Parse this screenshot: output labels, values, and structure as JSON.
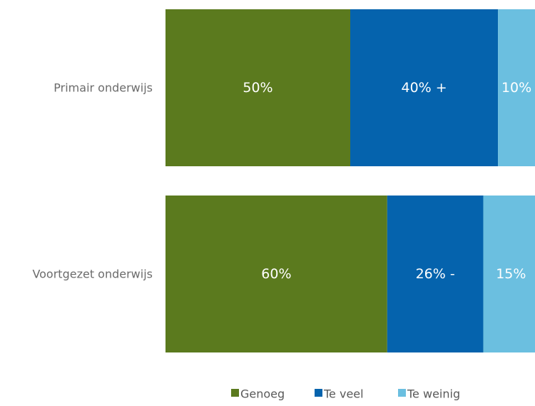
{
  "chart_data": {
    "type": "bar",
    "orientation": "horizontal",
    "stacked": true,
    "categories": [
      "Primair onderwijs",
      "Voortgezet onderwijs"
    ],
    "series": [
      {
        "name": "Genoeg",
        "color": "#5b7a1e",
        "values": [
          50,
          60
        ],
        "labels": [
          "50%",
          "60%"
        ]
      },
      {
        "name": "Te veel",
        "color": "#0563ad",
        "values": [
          40,
          26
        ],
        "labels": [
          "40% +",
          "26% -"
        ]
      },
      {
        "name": "Te weinig",
        "color": "#6bbfe0",
        "values": [
          10,
          15
        ],
        "labels": [
          "10%",
          "15%"
        ]
      }
    ],
    "xlim": [
      0,
      100
    ],
    "legend_position": "bottom",
    "grid": false
  }
}
